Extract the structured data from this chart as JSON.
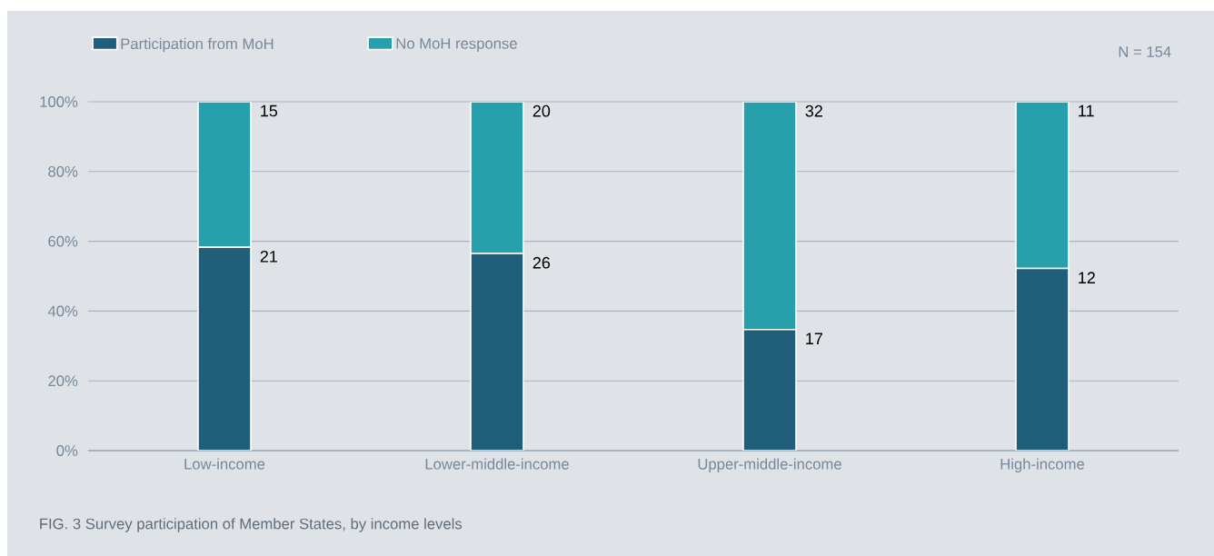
{
  "chart_data": {
    "type": "bar",
    "stacked": true,
    "title": "FIG. 3 Survey participation of Member States, by income levels",
    "annotations": [
      "N = 154",
      {
        "text": "21",
        "x": "Low-income",
        "y": 58.3
      },
      {
        "text": "26",
        "x": "Lower-middle-income",
        "y": 56.5
      },
      {
        "text": "17",
        "x": "Upper-middle-income",
        "y": 34.7
      },
      {
        "text": "12",
        "x": "High-income",
        "y": 52.2
      },
      {
        "text": "15",
        "x": "Low-income",
        "y": 100
      },
      {
        "text": "20",
        "x": "Lower-middle-income",
        "y": 100
      },
      {
        "text": "32",
        "x": "Upper-middle-income",
        "y": 100
      },
      {
        "text": "11",
        "x": "High-income",
        "y": 100
      }
    ],
    "categories": [
      "Low-income",
      "Lower-middle-income",
      "Upper-middle-income",
      "High-income"
    ],
    "series": [
      {
        "name": "Participation from MoH",
        "color": "#215e7a",
        "values": [
          58.3,
          56.5,
          34.7,
          52.2
        ]
      },
      {
        "name": "No MoH response",
        "color": "#27a0ac",
        "values": [
          41.7,
          43.5,
          65.3,
          47.8
        ]
      }
    ],
    "ylim": [
      0,
      100
    ],
    "yticks": [
      {
        "value": 0,
        "label": "0%"
      },
      {
        "value": 20,
        "label": "20%"
      },
      {
        "value": 40,
        "label": "40%"
      },
      {
        "value": 60,
        "label": "60%"
      },
      {
        "value": 80,
        "label": "80%"
      },
      {
        "value": 100,
        "label": "100%"
      }
    ],
    "grid": "y",
    "legend": "top left"
  }
}
